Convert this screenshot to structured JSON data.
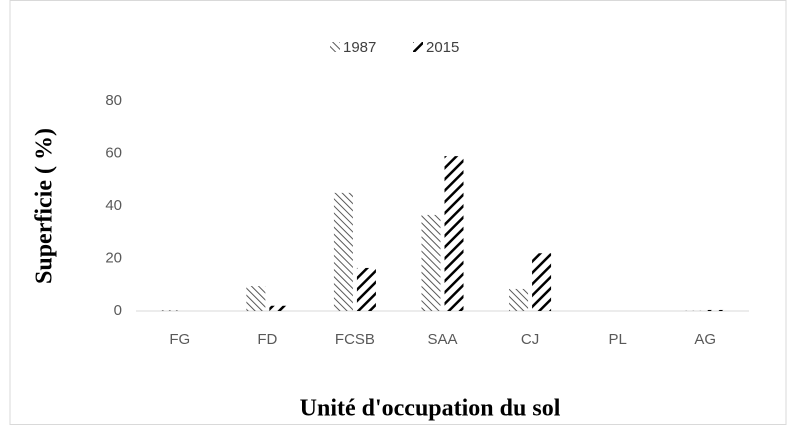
{
  "chart_data": {
    "type": "bar",
    "x_label": "Unité d'occupation du sol",
    "y_label": "Superficie ( %)",
    "categories": [
      "FG",
      "FD",
      "FCSB",
      "SAA",
      "CJ",
      "PL",
      "AG"
    ],
    "series": [
      {
        "name": "1987",
        "color": "#595959",
        "values": [
          0.3,
          9.5,
          45,
          36.6,
          8.4,
          0,
          0.1
        ]
      },
      {
        "name": "2015",
        "color": "#000000",
        "values": [
          0,
          2,
          16.4,
          59,
          22,
          0,
          0.4
        ]
      }
    ],
    "ylim": [
      0,
      80
    ],
    "yticks": [
      0,
      20,
      40,
      60,
      80
    ],
    "grid": false,
    "legend": "top"
  }
}
